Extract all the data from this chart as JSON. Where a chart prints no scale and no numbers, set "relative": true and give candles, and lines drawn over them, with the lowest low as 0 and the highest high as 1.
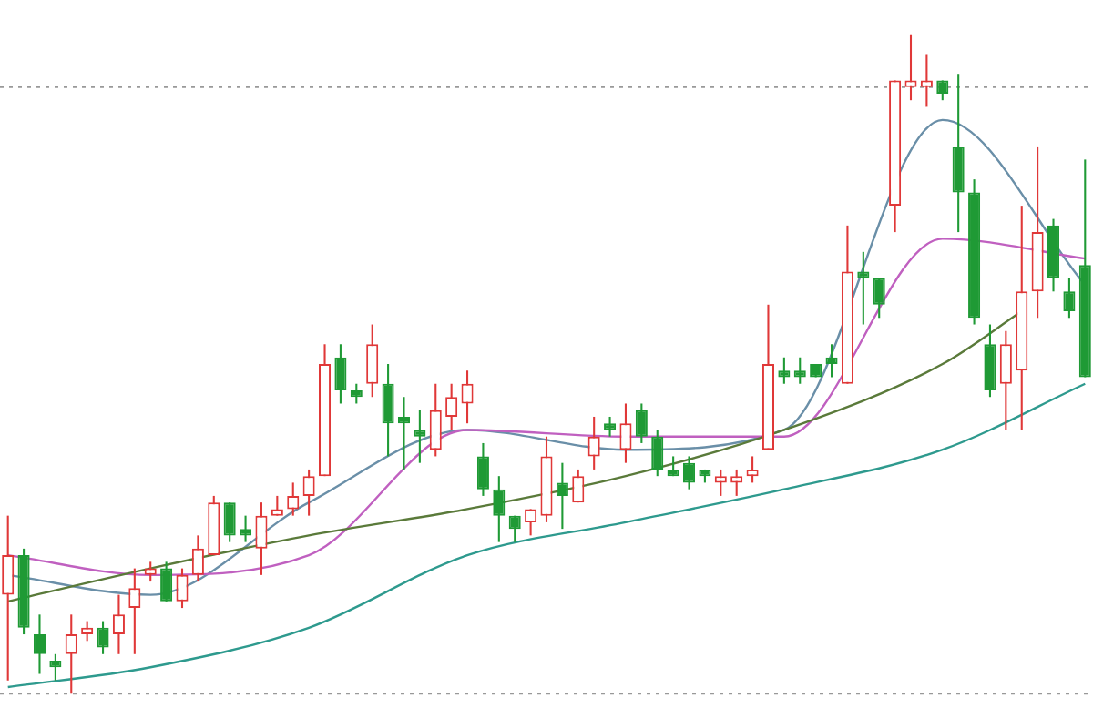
{
  "chart_data": {
    "type": "candlestick",
    "relative": true,
    "categories": [
      null,
      null,
      null,
      null,
      null,
      null,
      null,
      null,
      null,
      null,
      null,
      null,
      null,
      null,
      null,
      null,
      null,
      null,
      null,
      null,
      null,
      null,
      null,
      null,
      null,
      null,
      null,
      null,
      null,
      null,
      null,
      null,
      null,
      null,
      null,
      null,
      null,
      null,
      null,
      null,
      null,
      null,
      null,
      null,
      null,
      null,
      null,
      null,
      null,
      null,
      null,
      null,
      null,
      null,
      null,
      null,
      null,
      null,
      null,
      null,
      null,
      null,
      null,
      null,
      null,
      null,
      null,
      null,
      null
    ],
    "ohlc": [
      [
        0.15,
        0.27,
        0.02,
        0.21
      ],
      [
        0.21,
        0.22,
        0.09,
        0.1
      ],
      [
        0.09,
        0.12,
        0.03,
        0.06
      ],
      [
        0.05,
        0.06,
        0.02,
        0.04
      ],
      [
        0.06,
        0.12,
        0,
        0.09
      ],
      [
        0.09,
        0.11,
        0.08,
        0.1
      ],
      [
        0.1,
        0.11,
        0.06,
        0.07
      ],
      [
        0.09,
        0.15,
        0.06,
        0.12
      ],
      [
        0.13,
        0.19,
        0.06,
        0.16
      ],
      [
        0.18,
        0.2,
        0.17,
        0.19
      ],
      [
        0.19,
        0.2,
        0.14,
        0.14
      ],
      [
        0.14,
        0.19,
        0.13,
        0.18
      ],
      [
        0.18,
        0.24,
        0.17,
        0.22
      ],
      [
        0.21,
        0.3,
        0.21,
        0.29
      ],
      [
        0.29,
        0.29,
        0.23,
        0.24
      ],
      [
        0.25,
        0.27,
        0.23,
        0.24
      ],
      [
        0.22,
        0.29,
        0.18,
        0.27
      ],
      [
        0.27,
        0.3,
        0.27,
        0.28
      ],
      [
        0.28,
        0.32,
        0.27,
        0.3
      ],
      [
        0.3,
        0.34,
        0.27,
        0.33
      ],
      [
        0.33,
        0.53,
        0.33,
        0.5
      ],
      [
        0.51,
        0.53,
        0.44,
        0.46
      ],
      [
        0.46,
        0.47,
        0.44,
        0.45
      ],
      [
        0.47,
        0.56,
        0.45,
        0.53
      ],
      [
        0.47,
        0.5,
        0.36,
        0.41
      ],
      [
        0.42,
        0.45,
        0.34,
        0.41
      ],
      [
        0.4,
        0.43,
        0.35,
        0.39
      ],
      [
        0.37,
        0.47,
        0.36,
        0.43
      ],
      [
        0.42,
        0.47,
        0.4,
        0.45
      ],
      [
        0.44,
        0.49,
        0.41,
        0.47
      ],
      [
        0.36,
        0.38,
        0.3,
        0.31
      ],
      [
        0.31,
        0.33,
        0.23,
        0.27
      ],
      [
        0.27,
        0.27,
        0.23,
        0.25
      ],
      [
        0.26,
        0.28,
        0.24,
        0.28
      ],
      [
        0.27,
        0.39,
        0.26,
        0.36
      ],
      [
        0.32,
        0.35,
        0.25,
        0.3
      ],
      [
        0.29,
        0.34,
        0.29,
        0.33
      ],
      [
        0.36,
        0.42,
        0.34,
        0.39
      ],
      [
        0.41,
        0.42,
        0.39,
        0.4
      ],
      [
        0.37,
        0.44,
        0.35,
        0.41
      ],
      [
        0.43,
        0.44,
        0.38,
        0.39
      ],
      [
        0.39,
        0.4,
        0.33,
        0.34
      ],
      [
        0.34,
        0.36,
        0.33,
        0.33
      ],
      [
        0.35,
        0.36,
        0.31,
        0.32
      ],
      [
        0.34,
        0.34,
        0.32,
        0.33
      ],
      [
        0.32,
        0.34,
        0.3,
        0.33
      ],
      [
        0.32,
        0.34,
        0.3,
        0.33
      ],
      [
        0.33,
        0.36,
        0.32,
        0.34
      ],
      [
        0.37,
        0.59,
        0.37,
        0.5
      ],
      [
        0.49,
        0.51,
        0.47,
        0.48
      ],
      [
        0.49,
        0.51,
        0.47,
        0.48
      ],
      [
        0.5,
        0.5,
        0.48,
        0.48
      ],
      [
        0.51,
        0.53,
        0.48,
        0.5
      ],
      [
        0.47,
        0.71,
        0.47,
        0.64
      ],
      [
        0.64,
        0.67,
        0.56,
        0.63
      ],
      [
        0.63,
        0.63,
        0.57,
        0.59
      ],
      [
        0.74,
        0.93,
        0.7,
        0.93
      ],
      [
        0.92,
        1,
        0.9,
        0.93
      ],
      [
        0.92,
        0.97,
        0.89,
        0.93
      ],
      [
        0.93,
        0.93,
        0.9,
        0.91
      ],
      [
        0.83,
        0.94,
        0.7,
        0.76
      ],
      [
        0.76,
        0.78,
        0.56,
        0.57
      ],
      [
        0.53,
        0.56,
        0.45,
        0.46
      ],
      [
        0.47,
        0.55,
        0.4,
        0.53
      ],
      [
        0.49,
        0.74,
        0.4,
        0.61
      ],
      [
        0.61,
        0.83,
        0.57,
        0.7
      ],
      [
        0.71,
        0.72,
        0.61,
        0.63
      ],
      [
        0.61,
        0.63,
        0.57,
        0.58
      ],
      [
        0.65,
        0.81,
        0.48,
        0.48
      ]
    ],
    "series": [
      {
        "type": "line",
        "color": "#2e9a8e",
        "values": [
          0.01,
          null,
          null,
          null,
          null,
          null,
          null,
          null,
          null,
          0.04,
          null,
          null,
          null,
          null,
          null,
          null,
          null,
          null,
          null,
          0.1,
          null,
          null,
          null,
          null,
          null,
          null,
          null,
          null,
          null,
          0.21,
          null,
          null,
          null,
          null,
          null,
          null,
          null,
          null,
          null,
          0.26,
          null,
          null,
          null,
          null,
          null,
          null,
          null,
          null,
          null,
          0.31,
          null,
          null,
          null,
          null,
          null,
          null,
          null,
          null,
          null,
          0.37,
          null,
          null,
          null,
          null,
          null,
          null,
          null,
          null,
          0.47
        ]
      },
      {
        "type": "line",
        "color": "#5a7a3a",
        "values": [
          0.14,
          null,
          null,
          null,
          null,
          null,
          null,
          null,
          null,
          0.19,
          null,
          null,
          null,
          null,
          null,
          null,
          null,
          null,
          null,
          0.24,
          null,
          null,
          null,
          null,
          null,
          null,
          null,
          null,
          null,
          0.28,
          null,
          null,
          null,
          null,
          null,
          null,
          null,
          null,
          null,
          0.33,
          null,
          null,
          null,
          null,
          null,
          null,
          null,
          null,
          null,
          0.4,
          null,
          null,
          null,
          null,
          null,
          null,
          null,
          null,
          null,
          0.5,
          null,
          null,
          null,
          null,
          0.58,
          null,
          null,
          null,
          null
        ]
      },
      {
        "type": "line",
        "color": "#c060c0",
        "values": [
          0.21,
          null,
          null,
          null,
          null,
          null,
          null,
          null,
          null,
          0.18,
          null,
          null,
          null,
          null,
          null,
          null,
          null,
          null,
          null,
          0.21,
          null,
          null,
          null,
          null,
          null,
          null,
          null,
          null,
          null,
          0.4,
          null,
          null,
          null,
          null,
          null,
          null,
          null,
          null,
          null,
          0.39,
          null,
          null,
          null,
          null,
          null,
          null,
          null,
          null,
          null,
          0.39,
          null,
          null,
          null,
          null,
          null,
          null,
          null,
          null,
          null,
          0.69,
          null,
          null,
          null,
          null,
          null,
          null,
          null,
          null,
          0.66
        ]
      },
      {
        "type": "line",
        "color": "#6a8fa8",
        "values": [
          0.18,
          null,
          null,
          null,
          null,
          null,
          null,
          null,
          null,
          0.15,
          null,
          null,
          null,
          null,
          null,
          null,
          null,
          null,
          null,
          0.29,
          null,
          null,
          null,
          null,
          null,
          null,
          null,
          null,
          null,
          0.4,
          null,
          null,
          null,
          null,
          null,
          null,
          null,
          null,
          null,
          0.37,
          null,
          null,
          null,
          null,
          null,
          null,
          null,
          null,
          null,
          0.4,
          null,
          null,
          null,
          null,
          null,
          null,
          null,
          null,
          null,
          0.87,
          null,
          null,
          null,
          null,
          null,
          null,
          null,
          null,
          0.62
        ]
      }
    ],
    "ref_lines": [
      {
        "axis": "y",
        "value": 0.92,
        "color": "#999999",
        "line_style": "dotted"
      },
      {
        "axis": "y",
        "value": 0,
        "color": "#999999",
        "line_style": "dotted"
      }
    ],
    "grid": false,
    "legend": false
  }
}
